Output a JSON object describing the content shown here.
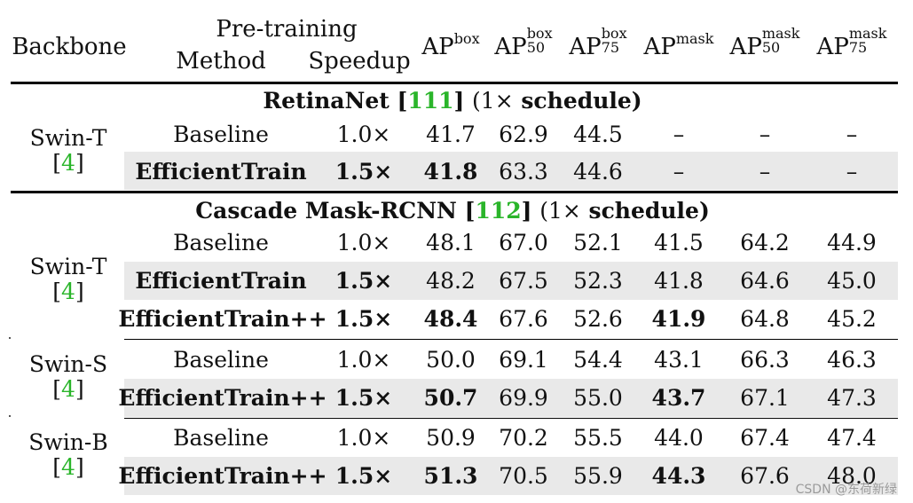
{
  "header": {
    "backbone": "Backbone",
    "pretraining": "Pre-training",
    "method": "Method",
    "speedup": "Speedup",
    "ap": "AP",
    "box": "box",
    "mask": "mask",
    "s50": "50",
    "s75": "75"
  },
  "sections": {
    "retinanet": {
      "name": "RetinaNet [",
      "cite": "111",
      "close": "] ",
      "sched": "(1×",
      "schedule": " schedule)"
    },
    "cascade": {
      "name": "Cascade Mask-RCNN [",
      "cite": "112",
      "close": "] ",
      "sched": "(1×",
      "schedule": " schedule)"
    }
  },
  "backbones": {
    "swin_t1": {
      "name": "Swin-T",
      "lb": "[",
      "cite": "4",
      "rb": "]"
    },
    "swin_t2": {
      "name": "Swin-T",
      "lb": "[",
      "cite": "4",
      "rb": "]"
    },
    "swin_s": {
      "name": "Swin-S",
      "lb": "[",
      "cite": "4",
      "rb": "]"
    },
    "swin_b": {
      "name": "Swin-B",
      "lb": "[",
      "cite": "4",
      "rb": "]"
    }
  },
  "rows": {
    "r1": [
      "Baseline",
      "1.0×",
      "41.7",
      "62.9",
      "44.5",
      "–",
      "–",
      "–"
    ],
    "r2": [
      "EfficientTrain",
      "1.5×",
      "41.8",
      "63.3",
      "44.6",
      "–",
      "–",
      "–"
    ],
    "r3": [
      "Baseline",
      "1.0×",
      "48.1",
      "67.0",
      "52.1",
      "41.5",
      "64.2",
      "44.9"
    ],
    "r4": [
      "EfficientTrain",
      "1.5×",
      "48.2",
      "67.5",
      "52.3",
      "41.8",
      "64.6",
      "45.0"
    ],
    "r5": [
      "EfficientTrain++",
      "1.5×",
      "48.4",
      "67.6",
      "52.6",
      "41.9",
      "64.8",
      "45.2"
    ],
    "r6": [
      "Baseline",
      "1.0×",
      "50.0",
      "69.1",
      "54.4",
      "43.1",
      "66.3",
      "46.3"
    ],
    "r7": [
      "EfficientTrain++",
      "1.5×",
      "50.7",
      "69.9",
      "55.0",
      "43.7",
      "67.1",
      "47.3"
    ],
    "r8": [
      "Baseline",
      "1.0×",
      "50.9",
      "70.2",
      "55.5",
      "44.0",
      "67.4",
      "47.4"
    ],
    "r9": [
      "EfficientTrain++",
      "1.5×",
      "51.3",
      "70.5",
      "55.9",
      "44.3",
      "67.6",
      "48.0"
    ]
  },
  "watermark": "CSDN @东荷新绿",
  "colors": {
    "cite": "#2ab52a",
    "shade": "#e9e9e9"
  }
}
